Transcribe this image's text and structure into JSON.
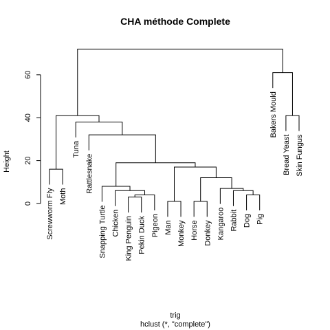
{
  "chart_data": {
    "type": "dendrogram",
    "title": "CHA méthode Complete",
    "xlabel": "trig",
    "sub": "hclust (*, \"complete\")",
    "ylabel": "Height",
    "yticks": [
      0,
      20,
      40,
      60
    ],
    "ylim": [
      0,
      72
    ],
    "leaves": [
      "Screwworm Fly",
      "Moth",
      "Tuna",
      "Rattlesnake",
      "Snapping Turtle",
      "Chicken",
      "King Penguin",
      "Pekin Duck",
      "Pigeon",
      "Man",
      "Monkey",
      "Horse",
      "Donkey",
      "Kangaroo",
      "Rabbit",
      "Dog",
      "Pig",
      "Bakers Mould",
      "Bread Yeast",
      "Skin Fungus"
    ],
    "merges": [
      {
        "id": "m1",
        "a": "Screwworm Fly",
        "b": "Moth",
        "height": 16
      },
      {
        "id": "m2",
        "a": "King Penguin",
        "b": "Pekin Duck",
        "height": 3
      },
      {
        "id": "m3",
        "a": "m2",
        "b": "Pigeon",
        "height": 4
      },
      {
        "id": "m4",
        "a": "Chicken",
        "b": "m3",
        "height": 6
      },
      {
        "id": "m5",
        "a": "Snapping Turtle",
        "b": "m4",
        "height": 8
      },
      {
        "id": "m6",
        "a": "Man",
        "b": "Monkey",
        "height": 1
      },
      {
        "id": "m7",
        "a": "Horse",
        "b": "Donkey",
        "height": 1
      },
      {
        "id": "m8",
        "a": "Dog",
        "b": "Pig",
        "height": 4
      },
      {
        "id": "m9",
        "a": "Rabbit",
        "b": "m8",
        "height": 6
      },
      {
        "id": "m10",
        "a": "Kangaroo",
        "b": "m9",
        "height": 7
      },
      {
        "id": "m11",
        "a": "m7",
        "b": "m10",
        "height": 12
      },
      {
        "id": "m12",
        "a": "m6",
        "b": "m11",
        "height": 17
      },
      {
        "id": "m13",
        "a": "m5",
        "b": "m12",
        "height": 19
      },
      {
        "id": "m14",
        "a": "Rattlesnake",
        "b": "m13",
        "height": 32
      },
      {
        "id": "m15",
        "a": "Tuna",
        "b": "m14",
        "height": 38
      },
      {
        "id": "m16",
        "a": "m1",
        "b": "m15",
        "height": 41
      },
      {
        "id": "m17",
        "a": "Bread Yeast",
        "b": "Skin Fungus",
        "height": 41
      },
      {
        "id": "m18",
        "a": "Bakers Mould",
        "b": "m17",
        "height": 61
      },
      {
        "id": "m19",
        "a": "m16",
        "b": "m18",
        "height": 72
      }
    ]
  }
}
